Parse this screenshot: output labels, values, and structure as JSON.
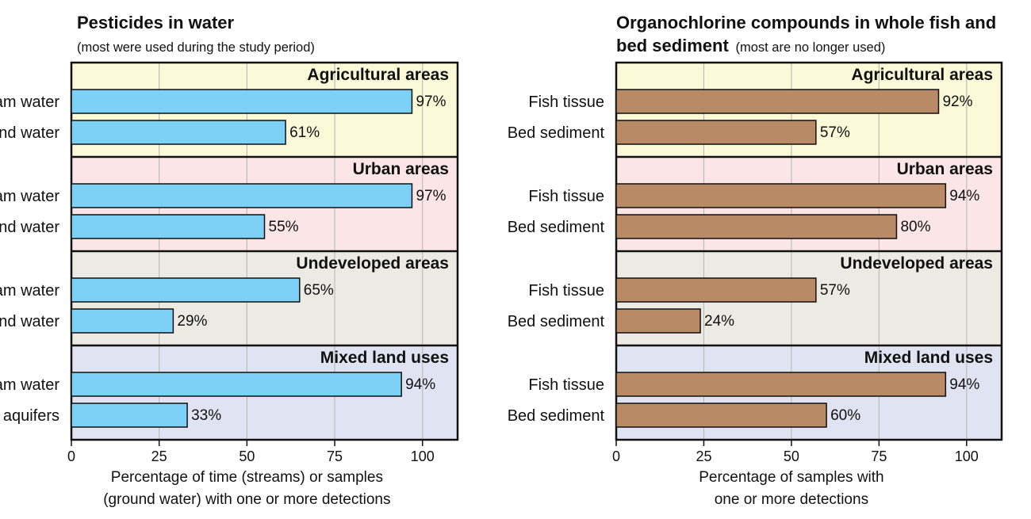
{
  "chart_data": [
    {
      "type": "bar",
      "orientation": "horizontal",
      "title": "Pesticides in water",
      "subtitle": "(most were used during the study period)",
      "groups": [
        {
          "name": "Agricultural areas",
          "color": "#fbf9d8",
          "bars": [
            {
              "label": "Stream water",
              "value": 97
            },
            {
              "label": "Ground water",
              "value": 61
            }
          ]
        },
        {
          "name": "Urban areas",
          "color": "#fbe5e6",
          "bars": [
            {
              "label": "Stream water",
              "value": 97
            },
            {
              "label": "Ground water",
              "value": 55
            }
          ]
        },
        {
          "name": "Undeveloped areas",
          "color": "#ebebe4",
          "bars": [
            {
              "label": "Stream water",
              "value": 65
            },
            {
              "label": "Ground water",
              "value": 29
            }
          ]
        },
        {
          "name": "Mixed land uses",
          "color": "#e0e3f1",
          "bars": [
            {
              "label": "Stream water",
              "value": 94
            },
            {
              "label": "Major aquifers",
              "value": 33
            }
          ]
        }
      ],
      "bar_color": "#7dd0f6",
      "xlim": [
        0,
        110
      ],
      "xticks": [
        0,
        25,
        50,
        75,
        100
      ],
      "xlabel": [
        "Percentage of time (streams) or samples",
        "(ground water) with one or more detections"
      ],
      "value_suffix": "%"
    },
    {
      "type": "bar",
      "orientation": "horizontal",
      "title": "Organochlorine compounds in whole fish and",
      "title_line2": "bed sediment",
      "subtitle": "(most are no longer used)",
      "groups": [
        {
          "name": "Agricultural areas",
          "color": "#fbf9d8",
          "bars": [
            {
              "label": "Fish tissue",
              "value": 92
            },
            {
              "label": "Bed sediment",
              "value": 57
            }
          ]
        },
        {
          "name": "Urban areas",
          "color": "#fbe5e6",
          "bars": [
            {
              "label": "Fish tissue",
              "value": 94
            },
            {
              "label": "Bed sediment",
              "value": 80
            }
          ]
        },
        {
          "name": "Undeveloped areas",
          "color": "#ebebe4",
          "bars": [
            {
              "label": "Fish tissue",
              "value": 57
            },
            {
              "label": "Bed sediment",
              "value": 24
            }
          ]
        },
        {
          "name": "Mixed land uses",
          "color": "#e0e3f1",
          "bars": [
            {
              "label": "Fish tissue",
              "value": 94
            },
            {
              "label": "Bed sediment",
              "value": 60
            }
          ]
        }
      ],
      "bar_color": "#b88a66",
      "xlim": [
        0,
        110
      ],
      "xticks": [
        0,
        25,
        50,
        75,
        100
      ],
      "xlabel": [
        "Percentage of samples with",
        "one or more detections"
      ],
      "value_suffix": "%"
    }
  ]
}
